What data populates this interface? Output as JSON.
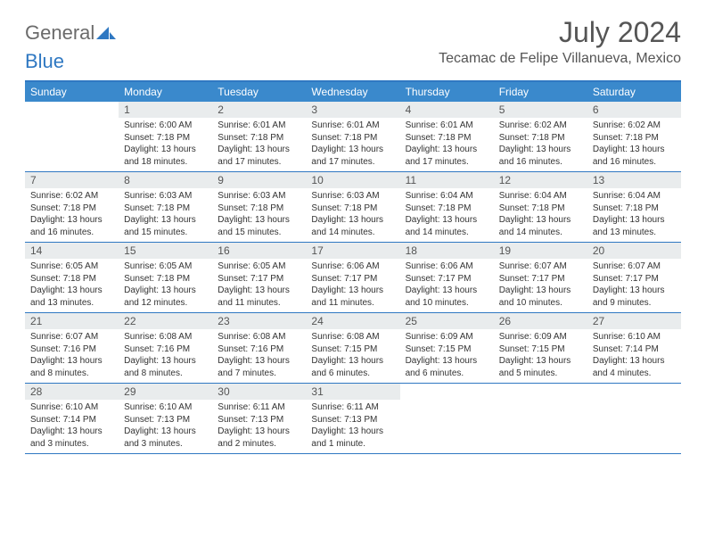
{
  "brand": {
    "part1": "General",
    "part2": "Blue"
  },
  "title": "July 2024",
  "location": "Tecamac de Felipe Villanueva, Mexico",
  "colors": {
    "header_bar": "#3a89cc",
    "accent_line": "#2f78c2",
    "daynum_bg": "#e9eced",
    "text_dark": "#333333",
    "text_muted": "#555555"
  },
  "days_of_week": [
    "Sunday",
    "Monday",
    "Tuesday",
    "Wednesday",
    "Thursday",
    "Friday",
    "Saturday"
  ],
  "weeks": [
    [
      {
        "num": "",
        "lines": [
          "",
          "",
          "",
          ""
        ]
      },
      {
        "num": "1",
        "lines": [
          "Sunrise: 6:00 AM",
          "Sunset: 7:18 PM",
          "Daylight: 13 hours",
          "and 18 minutes."
        ]
      },
      {
        "num": "2",
        "lines": [
          "Sunrise: 6:01 AM",
          "Sunset: 7:18 PM",
          "Daylight: 13 hours",
          "and 17 minutes."
        ]
      },
      {
        "num": "3",
        "lines": [
          "Sunrise: 6:01 AM",
          "Sunset: 7:18 PM",
          "Daylight: 13 hours",
          "and 17 minutes."
        ]
      },
      {
        "num": "4",
        "lines": [
          "Sunrise: 6:01 AM",
          "Sunset: 7:18 PM",
          "Daylight: 13 hours",
          "and 17 minutes."
        ]
      },
      {
        "num": "5",
        "lines": [
          "Sunrise: 6:02 AM",
          "Sunset: 7:18 PM",
          "Daylight: 13 hours",
          "and 16 minutes."
        ]
      },
      {
        "num": "6",
        "lines": [
          "Sunrise: 6:02 AM",
          "Sunset: 7:18 PM",
          "Daylight: 13 hours",
          "and 16 minutes."
        ]
      }
    ],
    [
      {
        "num": "7",
        "lines": [
          "Sunrise: 6:02 AM",
          "Sunset: 7:18 PM",
          "Daylight: 13 hours",
          "and 16 minutes."
        ]
      },
      {
        "num": "8",
        "lines": [
          "Sunrise: 6:03 AM",
          "Sunset: 7:18 PM",
          "Daylight: 13 hours",
          "and 15 minutes."
        ]
      },
      {
        "num": "9",
        "lines": [
          "Sunrise: 6:03 AM",
          "Sunset: 7:18 PM",
          "Daylight: 13 hours",
          "and 15 minutes."
        ]
      },
      {
        "num": "10",
        "lines": [
          "Sunrise: 6:03 AM",
          "Sunset: 7:18 PM",
          "Daylight: 13 hours",
          "and 14 minutes."
        ]
      },
      {
        "num": "11",
        "lines": [
          "Sunrise: 6:04 AM",
          "Sunset: 7:18 PM",
          "Daylight: 13 hours",
          "and 14 minutes."
        ]
      },
      {
        "num": "12",
        "lines": [
          "Sunrise: 6:04 AM",
          "Sunset: 7:18 PM",
          "Daylight: 13 hours",
          "and 14 minutes."
        ]
      },
      {
        "num": "13",
        "lines": [
          "Sunrise: 6:04 AM",
          "Sunset: 7:18 PM",
          "Daylight: 13 hours",
          "and 13 minutes."
        ]
      }
    ],
    [
      {
        "num": "14",
        "lines": [
          "Sunrise: 6:05 AM",
          "Sunset: 7:18 PM",
          "Daylight: 13 hours",
          "and 13 minutes."
        ]
      },
      {
        "num": "15",
        "lines": [
          "Sunrise: 6:05 AM",
          "Sunset: 7:18 PM",
          "Daylight: 13 hours",
          "and 12 minutes."
        ]
      },
      {
        "num": "16",
        "lines": [
          "Sunrise: 6:05 AM",
          "Sunset: 7:17 PM",
          "Daylight: 13 hours",
          "and 11 minutes."
        ]
      },
      {
        "num": "17",
        "lines": [
          "Sunrise: 6:06 AM",
          "Sunset: 7:17 PM",
          "Daylight: 13 hours",
          "and 11 minutes."
        ]
      },
      {
        "num": "18",
        "lines": [
          "Sunrise: 6:06 AM",
          "Sunset: 7:17 PM",
          "Daylight: 13 hours",
          "and 10 minutes."
        ]
      },
      {
        "num": "19",
        "lines": [
          "Sunrise: 6:07 AM",
          "Sunset: 7:17 PM",
          "Daylight: 13 hours",
          "and 10 minutes."
        ]
      },
      {
        "num": "20",
        "lines": [
          "Sunrise: 6:07 AM",
          "Sunset: 7:17 PM",
          "Daylight: 13 hours",
          "and 9 minutes."
        ]
      }
    ],
    [
      {
        "num": "21",
        "lines": [
          "Sunrise: 6:07 AM",
          "Sunset: 7:16 PM",
          "Daylight: 13 hours",
          "and 8 minutes."
        ]
      },
      {
        "num": "22",
        "lines": [
          "Sunrise: 6:08 AM",
          "Sunset: 7:16 PM",
          "Daylight: 13 hours",
          "and 8 minutes."
        ]
      },
      {
        "num": "23",
        "lines": [
          "Sunrise: 6:08 AM",
          "Sunset: 7:16 PM",
          "Daylight: 13 hours",
          "and 7 minutes."
        ]
      },
      {
        "num": "24",
        "lines": [
          "Sunrise: 6:08 AM",
          "Sunset: 7:15 PM",
          "Daylight: 13 hours",
          "and 6 minutes."
        ]
      },
      {
        "num": "25",
        "lines": [
          "Sunrise: 6:09 AM",
          "Sunset: 7:15 PM",
          "Daylight: 13 hours",
          "and 6 minutes."
        ]
      },
      {
        "num": "26",
        "lines": [
          "Sunrise: 6:09 AM",
          "Sunset: 7:15 PM",
          "Daylight: 13 hours",
          "and 5 minutes."
        ]
      },
      {
        "num": "27",
        "lines": [
          "Sunrise: 6:10 AM",
          "Sunset: 7:14 PM",
          "Daylight: 13 hours",
          "and 4 minutes."
        ]
      }
    ],
    [
      {
        "num": "28",
        "lines": [
          "Sunrise: 6:10 AM",
          "Sunset: 7:14 PM",
          "Daylight: 13 hours",
          "and 3 minutes."
        ]
      },
      {
        "num": "29",
        "lines": [
          "Sunrise: 6:10 AM",
          "Sunset: 7:13 PM",
          "Daylight: 13 hours",
          "and 3 minutes."
        ]
      },
      {
        "num": "30",
        "lines": [
          "Sunrise: 6:11 AM",
          "Sunset: 7:13 PM",
          "Daylight: 13 hours",
          "and 2 minutes."
        ]
      },
      {
        "num": "31",
        "lines": [
          "Sunrise: 6:11 AM",
          "Sunset: 7:13 PM",
          "Daylight: 13 hours",
          "and 1 minute."
        ]
      },
      {
        "num": "",
        "lines": [
          "",
          "",
          "",
          ""
        ]
      },
      {
        "num": "",
        "lines": [
          "",
          "",
          "",
          ""
        ]
      },
      {
        "num": "",
        "lines": [
          "",
          "",
          "",
          ""
        ]
      }
    ]
  ]
}
